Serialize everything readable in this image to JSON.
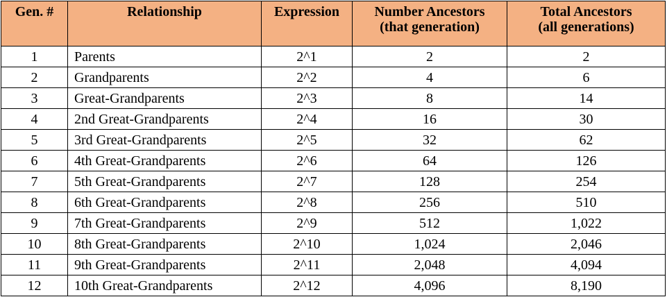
{
  "table": {
    "header": [
      [
        "Gen. #"
      ],
      [
        "Relationship"
      ],
      [
        "Expression"
      ],
      [
        "Number Ancestors",
        "(that generation)"
      ],
      [
        "Total Ancestors",
        "(all generations)"
      ]
    ],
    "rows": [
      [
        "1",
        "Parents",
        "2^1",
        "2",
        "2"
      ],
      [
        "2",
        "Grandparents",
        "2^2",
        "4",
        "6"
      ],
      [
        "3",
        "Great-Grandparents",
        "2^3",
        "8",
        "14"
      ],
      [
        "4",
        "2nd Great-Grandparents",
        "2^4",
        "16",
        "30"
      ],
      [
        "5",
        "3rd Great-Grandparents",
        "2^5",
        "32",
        "62"
      ],
      [
        "6",
        "4th Great-Grandparents",
        "2^6",
        "64",
        "126"
      ],
      [
        "7",
        "5th Great-Grandparents",
        "2^7",
        "128",
        "254"
      ],
      [
        "8",
        "6th Great-Grandparents",
        "2^8",
        "256",
        "510"
      ],
      [
        "9",
        "7th Great-Grandparents",
        "2^9",
        "512",
        "1,022"
      ],
      [
        "10",
        "8th Great-Grandparents",
        "2^10",
        "1,024",
        "2,046"
      ],
      [
        "11",
        "9th Great-Grandparents",
        "2^11",
        "2,048",
        "4,094"
      ],
      [
        "12",
        "10th Great-Grandparents",
        "2^12",
        "4,096",
        "8,190"
      ]
    ]
  }
}
